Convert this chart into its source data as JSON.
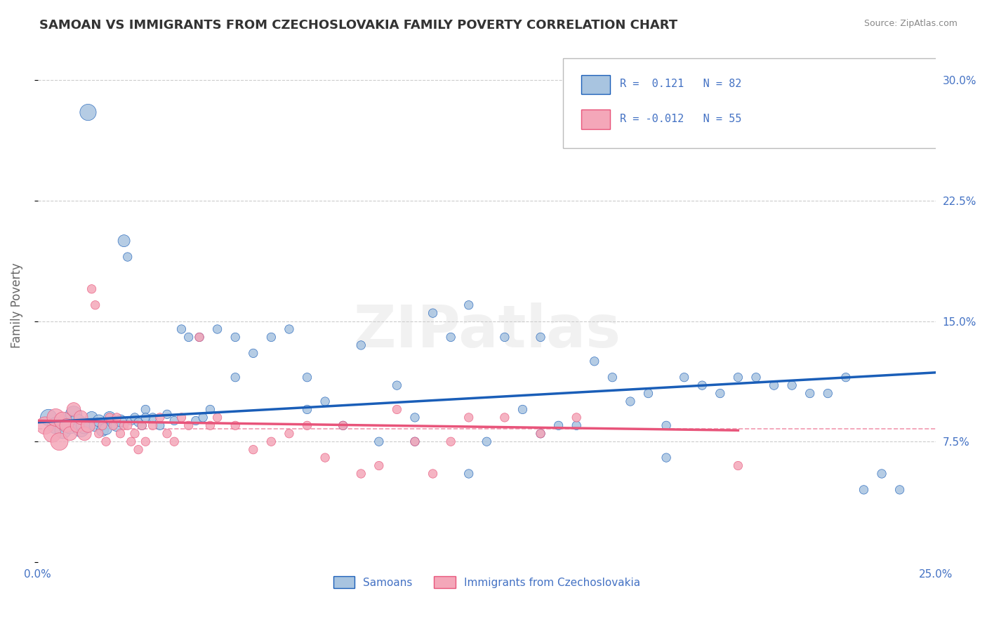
{
  "title": "SAMOAN VS IMMIGRANTS FROM CZECHOSLOVAKIA FAMILY POVERTY CORRELATION CHART",
  "source": "Source: ZipAtlas.com",
  "ylabel": "Family Poverty",
  "xmin": 0.0,
  "xmax": 0.25,
  "ymin": 0.0,
  "ymax": 0.32,
  "blue_color": "#a8c4e0",
  "pink_color": "#f4a7b9",
  "blue_line_color": "#1a5eb8",
  "pink_line_color": "#e8547a",
  "legend_blue_r": "R =  0.121",
  "legend_blue_n": "N = 82",
  "legend_pink_r": "R = -0.012",
  "legend_pink_n": "N = 55",
  "watermark": "ZIPatlas",
  "legend_label_blue": "Samoans",
  "legend_label_pink": "Immigrants from Czechoslovakia",
  "blue_scatter_x": [
    0.003,
    0.005,
    0.007,
    0.008,
    0.009,
    0.01,
    0.011,
    0.012,
    0.013,
    0.014,
    0.015,
    0.016,
    0.017,
    0.018,
    0.019,
    0.02,
    0.021,
    0.022,
    0.023,
    0.024,
    0.025,
    0.026,
    0.027,
    0.028,
    0.029,
    0.03,
    0.032,
    0.034,
    0.036,
    0.038,
    0.04,
    0.042,
    0.044,
    0.046,
    0.048,
    0.05,
    0.055,
    0.06,
    0.065,
    0.07,
    0.075,
    0.08,
    0.085,
    0.09,
    0.095,
    0.1,
    0.105,
    0.11,
    0.115,
    0.12,
    0.125,
    0.13,
    0.135,
    0.14,
    0.145,
    0.15,
    0.16,
    0.165,
    0.17,
    0.175,
    0.18,
    0.185,
    0.19,
    0.195,
    0.2,
    0.205,
    0.21,
    0.215,
    0.22,
    0.225,
    0.23,
    0.235,
    0.24,
    0.03,
    0.045,
    0.055,
    0.075,
    0.105,
    0.12,
    0.14,
    0.155,
    0.175
  ],
  "blue_scatter_y": [
    0.09,
    0.085,
    0.082,
    0.088,
    0.085,
    0.092,
    0.087,
    0.083,
    0.085,
    0.28,
    0.09,
    0.085,
    0.088,
    0.082,
    0.083,
    0.09,
    0.087,
    0.085,
    0.088,
    0.2,
    0.19,
    0.088,
    0.09,
    0.087,
    0.085,
    0.095,
    0.09,
    0.085,
    0.092,
    0.088,
    0.145,
    0.14,
    0.088,
    0.09,
    0.095,
    0.145,
    0.14,
    0.13,
    0.14,
    0.145,
    0.095,
    0.1,
    0.085,
    0.135,
    0.075,
    0.11,
    0.09,
    0.155,
    0.14,
    0.16,
    0.075,
    0.14,
    0.095,
    0.08,
    0.085,
    0.085,
    0.115,
    0.1,
    0.105,
    0.085,
    0.115,
    0.11,
    0.105,
    0.115,
    0.115,
    0.11,
    0.11,
    0.105,
    0.105,
    0.115,
    0.045,
    0.055,
    0.045,
    0.09,
    0.14,
    0.115,
    0.115,
    0.075,
    0.055,
    0.14,
    0.125,
    0.065
  ],
  "blue_scatter_size": 80,
  "pink_scatter_x": [
    0.002,
    0.004,
    0.005,
    0.006,
    0.007,
    0.008,
    0.009,
    0.01,
    0.011,
    0.012,
    0.013,
    0.014,
    0.015,
    0.016,
    0.017,
    0.018,
    0.019,
    0.02,
    0.021,
    0.022,
    0.023,
    0.024,
    0.025,
    0.026,
    0.027,
    0.028,
    0.029,
    0.03,
    0.032,
    0.034,
    0.036,
    0.038,
    0.04,
    0.042,
    0.045,
    0.048,
    0.05,
    0.055,
    0.06,
    0.065,
    0.07,
    0.075,
    0.08,
    0.085,
    0.09,
    0.095,
    0.1,
    0.105,
    0.11,
    0.115,
    0.12,
    0.13,
    0.14,
    0.15,
    0.195
  ],
  "pink_scatter_y": [
    0.085,
    0.08,
    0.09,
    0.075,
    0.088,
    0.085,
    0.08,
    0.095,
    0.085,
    0.09,
    0.08,
    0.085,
    0.17,
    0.16,
    0.08,
    0.085,
    0.075,
    0.09,
    0.085,
    0.09,
    0.08,
    0.085,
    0.085,
    0.075,
    0.08,
    0.07,
    0.085,
    0.075,
    0.085,
    0.09,
    0.08,
    0.075,
    0.09,
    0.085,
    0.14,
    0.085,
    0.09,
    0.085,
    0.07,
    0.075,
    0.08,
    0.085,
    0.065,
    0.085,
    0.055,
    0.06,
    0.095,
    0.075,
    0.055,
    0.075,
    0.09,
    0.09,
    0.08,
    0.09,
    0.06
  ],
  "pink_scatter_size": 80,
  "blue_trend_x": [
    0.0,
    0.25
  ],
  "blue_trend_y": [
    0.087,
    0.118
  ],
  "pink_trend_x": [
    0.0,
    0.195
  ],
  "pink_trend_y": [
    0.088,
    0.082
  ],
  "pink_hline_y": 0.083,
  "background_color": "#ffffff",
  "grid_color": "#cccccc",
  "title_color": "#333333",
  "axis_color": "#4472c4"
}
